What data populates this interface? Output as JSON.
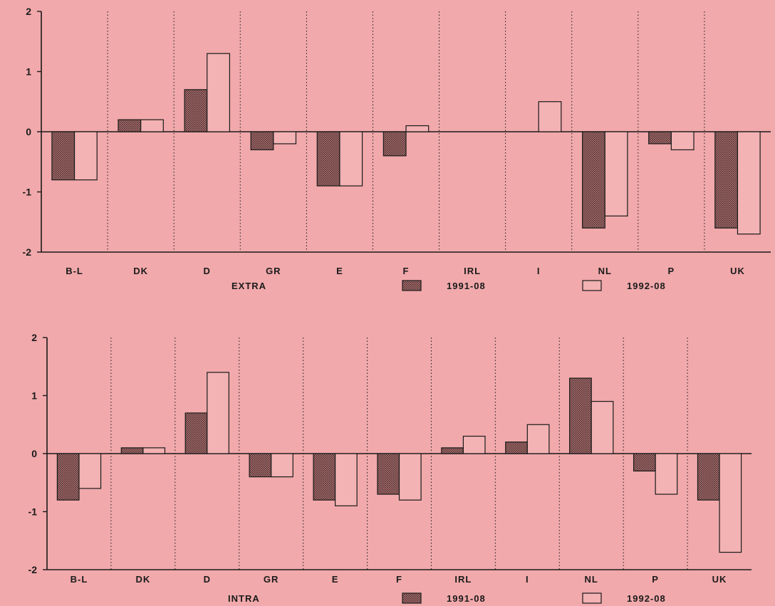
{
  "colors": {
    "background": "#f1a9ab",
    "bar1991": "#8a5a5a",
    "bar1992": "#f3b2b3",
    "ink": "#1a1a1a"
  },
  "chart_data": [
    {
      "type": "bar",
      "label": "EXTRA",
      "categories": [
        "B-L",
        "DK",
        "D",
        "GR",
        "E",
        "F",
        "IRL",
        "I",
        "NL",
        "P",
        "UK"
      ],
      "series": [
        {
          "name": "1991-08",
          "values": [
            -0.8,
            0.2,
            0.7,
            -0.3,
            -0.9,
            -0.4,
            0,
            0,
            -1.6,
            -0.2,
            -1.6
          ]
        },
        {
          "name": "1992-08",
          "values": [
            -0.8,
            0.2,
            1.3,
            -0.2,
            -0.9,
            0.1,
            0,
            0.5,
            -1.4,
            -0.3,
            -1.7
          ]
        }
      ],
      "ylim": [
        -2,
        2
      ],
      "yticks": [
        "2",
        "1",
        "0",
        "-1",
        "-2"
      ],
      "grid": "vertical dotted separators",
      "legend": "bottom"
    },
    {
      "type": "bar",
      "label": "INTRA",
      "categories": [
        "B-L",
        "DK",
        "D",
        "GR",
        "E",
        "F",
        "IRL",
        "I",
        "NL",
        "P",
        "UK"
      ],
      "series": [
        {
          "name": "1991-08",
          "values": [
            -0.8,
            0.1,
            0.7,
            -0.4,
            -0.8,
            -0.7,
            0.1,
            0.2,
            1.3,
            -0.3,
            -0.8
          ]
        },
        {
          "name": "1992-08",
          "values": [
            -0.6,
            0.1,
            1.4,
            -0.4,
            -0.9,
            -0.8,
            0.3,
            0.5,
            0.9,
            -0.7,
            -1.7
          ]
        }
      ],
      "ylim": [
        -2,
        2
      ],
      "yticks": [
        "2",
        "1",
        "0",
        "-1",
        "-2"
      ],
      "grid": "vertical dotted separators",
      "legend": "bottom"
    }
  ]
}
